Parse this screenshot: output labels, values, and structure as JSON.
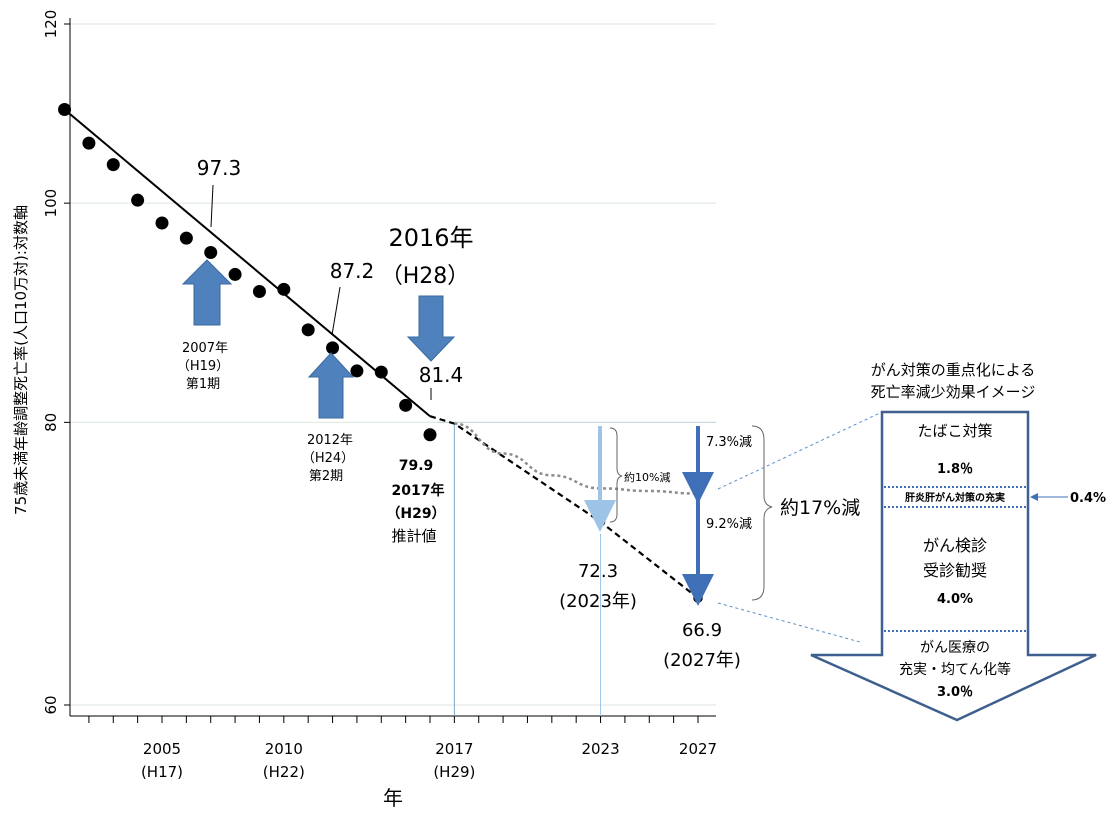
{
  "chart_data": {
    "type": "scatter",
    "ylabel": "75歳未満年齢調整死亡率(人口10万対):対数軸",
    "xlabel": "年",
    "yscale": "log",
    "ylim": [
      59,
      122
    ],
    "xlim": [
      2002,
      2027.5
    ],
    "yticks": [
      "60",
      "80",
      "100",
      "120"
    ],
    "xticks": [
      {
        "year": 2005,
        "label": "2005",
        "sub": "(H17)"
      },
      {
        "year": 2010,
        "label": "2010",
        "sub": "(H22)"
      },
      {
        "year": 2017,
        "label": "2017",
        "sub": "(H29)"
      },
      {
        "year": 2023,
        "label": "2023",
        "sub": ""
      },
      {
        "year": 2027,
        "label": "2027",
        "sub": ""
      }
    ],
    "grid": true,
    "series": [
      {
        "x": [
          2001,
          2002,
          2003,
          2004,
          2005,
          2006,
          2007,
          2008,
          2009,
          2010,
          2011,
          2012,
          2013,
          2014,
          2015,
          2016
        ],
        "y": [
          110.0,
          106.3,
          104.0,
          100.3,
          98.0,
          96.5,
          95.1,
          93.0,
          91.4,
          91.6,
          87.9,
          86.3,
          84.3,
          84.2,
          81.4,
          79.0
        ]
      }
    ],
    "trend_observed": {
      "x": [
        2001,
        2016
      ],
      "y": [
        110.0,
        80.5
      ]
    },
    "trend_projection": {
      "x": [
        2016,
        2017,
        2023,
        2027
      ],
      "y": [
        80.5,
        79.9,
        72.3,
        66.9
      ]
    },
    "projection_dotted": {
      "x": [
        2017,
        2019,
        2021,
        2023,
        2025,
        2027
      ],
      "y": [
        79.9,
        77.5,
        75.8,
        74.8,
        74.6,
        74.4
      ]
    },
    "open_points": [
      {
        "x": 2023,
        "y": 72.3
      },
      {
        "x": 2027,
        "y": 66.9
      }
    ],
    "annotations": {
      "v973": "97.3",
      "v872": "87.2",
      "v814": "81.4",
      "label_2016_line1": "2016年",
      "label_2016_line2": "（H28）",
      "p1_line1": "2007年",
      "p1_line2": "（H19）",
      "p1_line3": "第1期",
      "p2_line1": "2012年",
      "p2_line2": "（H24）",
      "p2_line3": "第2期",
      "est_line1": "79.9",
      "est_line2": "2017年",
      "est_line3": "（H29）",
      "est_line4": "推計値",
      "v723": "72.3",
      "v723_year": "(2023年)",
      "v669": "66.9",
      "v669_year": "(2027年)",
      "reduce10": "約10%減",
      "reduce73": "7.3%減",
      "reduce92": "9.2%減",
      "reduce17": "約17%減"
    }
  },
  "side_panel": {
    "title_line1": "がん対策の重点化による",
    "title_line2": "死亡率減少効果イメージ",
    "tobacco_label": "たばこ対策",
    "tobacco_value": "1.8％",
    "hepatitis_label": "肝炎肝がん対策の充実",
    "hepatitis_value": "0.4%",
    "screening_line1": "がん検診",
    "screening_line2": "受診勧奨",
    "screening_value": "4.0%",
    "care_line1": "がん医療の",
    "care_line2": "充実・均てん化等",
    "care_value": "3.0％"
  },
  "colors": {
    "arrow_blue": "#4f81bd",
    "light_blue": "#9dc3e6",
    "deep_blue": "#3f6fb6",
    "outline": "#3f5f8f",
    "grid": "#e2ebe6",
    "gray_dotted": "#8c8c8c"
  }
}
